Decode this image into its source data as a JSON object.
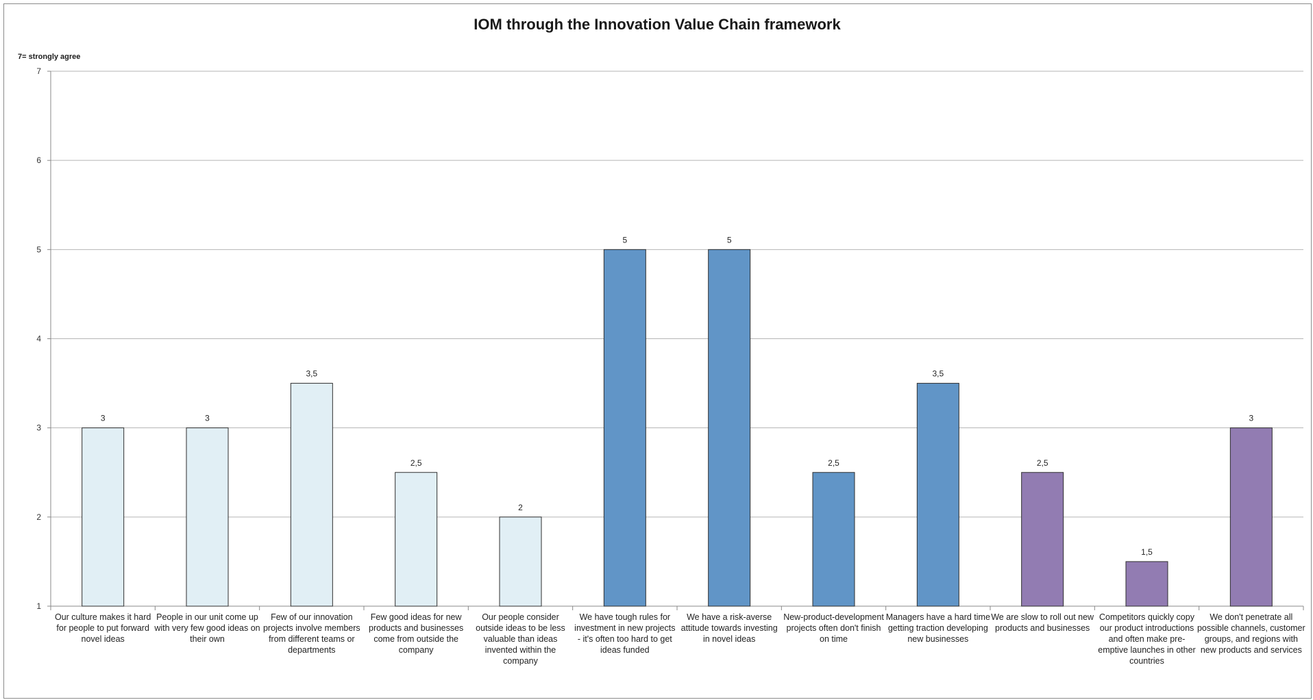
{
  "chart_data": {
    "type": "bar",
    "title": "IOM through the Innovation Value Chain framework",
    "y_note": "7= strongly agree",
    "ylim": [
      1,
      7
    ],
    "yticks": [
      "1",
      "2",
      "3",
      "4",
      "5",
      "6",
      "7"
    ],
    "grid": true,
    "legend": "none",
    "categories": [
      [
        "Our culture makes it hard",
        "for people to put forward",
        "novel ideas"
      ],
      [
        "People in our unit come up",
        "with very few good ideas on",
        "their own"
      ],
      [
        "Few of our innovation",
        "projects involve members",
        "from different teams or",
        "departments"
      ],
      [
        "Few good ideas for new",
        "products and businesses",
        "come from outside the",
        "company"
      ],
      [
        "Our people consider",
        "outside ideas to be less",
        "valuable than ideas",
        "invented within the",
        "company"
      ],
      [
        "We have tough rules for",
        "investment in new projects",
        "- it's often too hard to get",
        "ideas funded"
      ],
      [
        "We have a risk-averse",
        "attitude towards investing",
        "in novel ideas"
      ],
      [
        "New-product-development",
        "projects often don't finish",
        "on time"
      ],
      [
        "Managers have a hard time",
        "getting traction developing",
        "new businesses"
      ],
      [
        "We are slow to roll out new",
        "products and businesses"
      ],
      [
        "Competitors quickly copy",
        "our product introductions",
        "and often make pre-",
        "emptive launches in other",
        "countries"
      ],
      [
        "We don't penetrate all",
        "possible channels, customer",
        "groups, and regions with",
        "new products and services"
      ]
    ],
    "values": [
      3,
      3,
      3.5,
      2.5,
      2,
      5,
      5,
      2.5,
      3.5,
      2.5,
      1.5,
      3
    ],
    "value_labels": [
      "3",
      "3",
      "3,5",
      "2,5",
      "2",
      "5",
      "5",
      "2,5",
      "3,5",
      "2,5",
      "1,5",
      "3"
    ],
    "bar_colors": [
      "#e1eff5",
      "#e1eff5",
      "#e1eff5",
      "#e1eff5",
      "#e1eff5",
      "#6195c7",
      "#6195c7",
      "#6195c7",
      "#6195c7",
      "#927cb2",
      "#927cb2",
      "#927cb2"
    ],
    "bar_stroke": "#2e2e2e",
    "grid_color": "#b5b5b5"
  }
}
